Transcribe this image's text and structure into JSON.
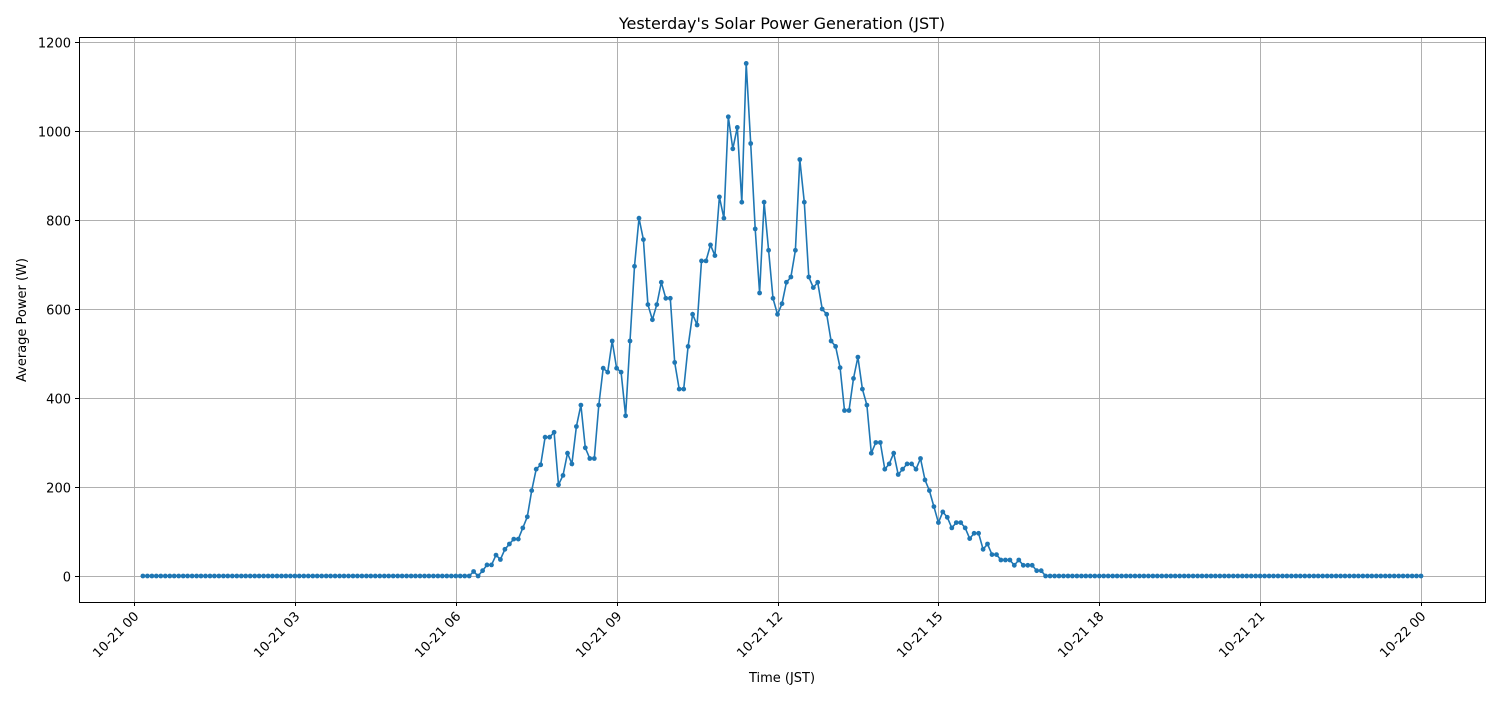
{
  "chart_data": {
    "type": "line",
    "title": "Yesterday's Solar Power Generation (JST)",
    "xlabel": "Time (JST)",
    "ylabel": "Average Power (W)",
    "xlim": [
      "10-20 22:58",
      "10-22 01:11"
    ],
    "ylim": [
      -58,
      1211
    ],
    "x_ticks": [
      "10-21 00",
      "10-21 03",
      "10-21 06",
      "10-21 09",
      "10-21 12",
      "10-21 15",
      "10-21 18",
      "10-21 21",
      "10-22 00"
    ],
    "y_ticks": [
      0,
      200,
      400,
      600,
      800,
      1000,
      1200
    ],
    "grid": true,
    "marker": "circle",
    "colors": {
      "line": "#1f77b4",
      "grid": "#b0b0b0"
    },
    "x": [
      "10-21 00:10",
      "10-21 00:15",
      "10-21 00:20",
      "10-21 00:25",
      "10-21 00:30",
      "10-21 00:35",
      "10-21 00:40",
      "10-21 00:45",
      "10-21 00:50",
      "10-21 00:55",
      "10-21 01:00",
      "10-21 01:05",
      "10-21 01:10",
      "10-21 01:15",
      "10-21 01:20",
      "10-21 01:25",
      "10-21 01:30",
      "10-21 01:35",
      "10-21 01:40",
      "10-21 01:45",
      "10-21 01:50",
      "10-21 01:55",
      "10-21 02:00",
      "10-21 02:05",
      "10-21 02:10",
      "10-21 02:15",
      "10-21 02:20",
      "10-21 02:25",
      "10-21 02:30",
      "10-21 02:35",
      "10-21 02:40",
      "10-21 02:45",
      "10-21 02:50",
      "10-21 02:55",
      "10-21 03:00",
      "10-21 03:05",
      "10-21 03:10",
      "10-21 03:15",
      "10-21 03:20",
      "10-21 03:25",
      "10-21 03:30",
      "10-21 03:35",
      "10-21 03:40",
      "10-21 03:45",
      "10-21 03:50",
      "10-21 03:55",
      "10-21 04:00",
      "10-21 04:05",
      "10-21 04:10",
      "10-21 04:15",
      "10-21 04:20",
      "10-21 04:25",
      "10-21 04:30",
      "10-21 04:35",
      "10-21 04:40",
      "10-21 04:45",
      "10-21 04:50",
      "10-21 04:55",
      "10-21 05:00",
      "10-21 05:05",
      "10-21 05:10",
      "10-21 05:15",
      "10-21 05:20",
      "10-21 05:25",
      "10-21 05:30",
      "10-21 05:35",
      "10-21 05:40",
      "10-21 05:45",
      "10-21 05:50",
      "10-21 05:55",
      "10-21 06:00",
      "10-21 06:05",
      "10-21 06:10",
      "10-21 06:15",
      "10-21 06:20",
      "10-21 06:25",
      "10-21 06:30",
      "10-21 06:35",
      "10-21 06:40",
      "10-21 06:45",
      "10-21 06:50",
      "10-21 06:55",
      "10-21 07:00",
      "10-21 07:05",
      "10-21 07:10",
      "10-21 07:15",
      "10-21 07:20",
      "10-21 07:25",
      "10-21 07:30",
      "10-21 07:35",
      "10-21 07:40",
      "10-21 07:45",
      "10-21 07:50",
      "10-21 07:55",
      "10-21 08:00",
      "10-21 08:05",
      "10-21 08:10",
      "10-21 08:15",
      "10-21 08:20",
      "10-21 08:25",
      "10-21 08:30",
      "10-21 08:35",
      "10-21 08:40",
      "10-21 08:45",
      "10-21 08:50",
      "10-21 08:55",
      "10-21 09:00",
      "10-21 09:05",
      "10-21 09:10",
      "10-21 09:15",
      "10-21 09:20",
      "10-21 09:25",
      "10-21 09:30",
      "10-21 09:35",
      "10-21 09:40",
      "10-21 09:45",
      "10-21 09:50",
      "10-21 09:55",
      "10-21 10:00",
      "10-21 10:05",
      "10-21 10:10",
      "10-21 10:15",
      "10-21 10:20",
      "10-21 10:25",
      "10-21 10:30",
      "10-21 10:35",
      "10-21 10:40",
      "10-21 10:45",
      "10-21 10:50",
      "10-21 10:55",
      "10-21 11:00",
      "10-21 11:05",
      "10-21 11:10",
      "10-21 11:15",
      "10-21 11:20",
      "10-21 11:25",
      "10-21 11:30",
      "10-21 11:35",
      "10-21 11:40",
      "10-21 11:45",
      "10-21 11:50",
      "10-21 11:55",
      "10-21 12:00",
      "10-21 12:05",
      "10-21 12:10",
      "10-21 12:15",
      "10-21 12:20",
      "10-21 12:25",
      "10-21 12:30",
      "10-21 12:35",
      "10-21 12:40",
      "10-21 12:45",
      "10-21 12:50",
      "10-21 12:55",
      "10-21 13:00",
      "10-21 13:05",
      "10-21 13:10",
      "10-21 13:15",
      "10-21 13:20",
      "10-21 13:25",
      "10-21 13:30",
      "10-21 13:35",
      "10-21 13:40",
      "10-21 13:45",
      "10-21 13:50",
      "10-21 13:55",
      "10-21 14:00",
      "10-21 14:05",
      "10-21 14:10",
      "10-21 14:15",
      "10-21 14:20",
      "10-21 14:25",
      "10-21 14:30",
      "10-21 14:35",
      "10-21 14:40",
      "10-21 14:45",
      "10-21 14:50",
      "10-21 14:55",
      "10-21 15:00",
      "10-21 15:05",
      "10-21 15:10",
      "10-21 15:15",
      "10-21 15:20",
      "10-21 15:25",
      "10-21 15:30",
      "10-21 15:35",
      "10-21 15:40",
      "10-21 15:45",
      "10-21 15:50",
      "10-21 15:55",
      "10-21 16:00",
      "10-21 16:05",
      "10-21 16:10",
      "10-21 16:15",
      "10-21 16:20",
      "10-21 16:25",
      "10-21 16:30",
      "10-21 16:35",
      "10-21 16:40",
      "10-21 16:45",
      "10-21 16:50",
      "10-21 16:55",
      "10-21 17:00",
      "10-21 17:05",
      "10-21 17:10",
      "10-21 17:15",
      "10-21 17:20",
      "10-21 17:25",
      "10-21 17:30",
      "10-21 17:35",
      "10-21 17:40",
      "10-21 17:45",
      "10-21 17:50",
      "10-21 17:55",
      "10-21 18:00",
      "10-21 18:05",
      "10-21 18:10",
      "10-21 18:15",
      "10-21 18:20",
      "10-21 18:25",
      "10-21 18:30",
      "10-21 18:35",
      "10-21 18:40",
      "10-21 18:45",
      "10-21 18:50",
      "10-21 18:55",
      "10-21 19:00",
      "10-21 19:05",
      "10-21 19:10",
      "10-21 19:15",
      "10-21 19:20",
      "10-21 19:25",
      "10-21 19:30",
      "10-21 19:35",
      "10-21 19:40",
      "10-21 19:45",
      "10-21 19:50",
      "10-21 19:55",
      "10-21 20:00",
      "10-21 20:05",
      "10-21 20:10",
      "10-21 20:15",
      "10-21 20:20",
      "10-21 20:25",
      "10-21 20:30",
      "10-21 20:35",
      "10-21 20:40",
      "10-21 20:45",
      "10-21 20:50",
      "10-21 20:55",
      "10-21 21:00",
      "10-21 21:05",
      "10-21 21:10",
      "10-21 21:15",
      "10-21 21:20",
      "10-21 21:25",
      "10-21 21:30",
      "10-21 21:35",
      "10-21 21:40",
      "10-21 21:45",
      "10-21 21:50",
      "10-21 21:55",
      "10-21 22:00",
      "10-21 22:05",
      "10-21 22:10",
      "10-21 22:15",
      "10-21 22:20",
      "10-21 22:25",
      "10-21 22:30",
      "10-21 22:35",
      "10-21 22:40",
      "10-21 22:45",
      "10-21 22:50",
      "10-21 22:55",
      "10-21 23:00",
      "10-21 23:05",
      "10-21 23:10",
      "10-21 23:15",
      "10-21 23:20",
      "10-21 23:25",
      "10-21 23:30",
      "10-21 23:35",
      "10-21 23:40",
      "10-21 23:45",
      "10-21 23:50",
      "10-21 23:55",
      "10-22 00:00"
    ],
    "values": [
      0,
      0,
      0,
      0,
      0,
      0,
      0,
      0,
      0,
      0,
      0,
      0,
      0,
      0,
      0,
      0,
      0,
      0,
      0,
      0,
      0,
      0,
      0,
      0,
      0,
      0,
      0,
      0,
      0,
      0,
      0,
      0,
      0,
      0,
      0,
      0,
      0,
      0,
      0,
      0,
      0,
      0,
      0,
      0,
      0,
      0,
      0,
      0,
      0,
      0,
      0,
      0,
      0,
      0,
      0,
      0,
      0,
      0,
      0,
      0,
      0,
      0,
      0,
      0,
      0,
      0,
      0,
      0,
      0,
      0,
      0,
      0,
      0,
      0,
      10,
      0,
      12,
      25,
      25,
      47,
      37,
      60,
      72,
      83,
      83,
      108,
      133,
      192,
      240,
      250,
      312,
      312,
      323,
      205,
      226,
      276,
      252,
      336,
      384,
      288,
      264,
      264,
      384,
      467,
      458,
      528,
      467,
      458,
      360,
      528,
      696,
      804,
      756,
      610,
      576,
      610,
      660,
      624,
      624,
      480,
      420,
      420,
      516,
      588,
      564,
      708,
      708,
      744,
      720,
      852,
      804,
      1032,
      960,
      1008,
      840,
      1152,
      972,
      780,
      636,
      840,
      732,
      624,
      588,
      612,
      660,
      672,
      732,
      936,
      840,
      672,
      648,
      660,
      600,
      588,
      528,
      516,
      468,
      372,
      372,
      444,
      492,
      420,
      384,
      276,
      300,
      300,
      240,
      252,
      276,
      228,
      240,
      252,
      252,
      240,
      264,
      216,
      192,
      156,
      120,
      144,
      132,
      108,
      120,
      120,
      108,
      84,
      96,
      96,
      60,
      72,
      48,
      48,
      36,
      36,
      36,
      24,
      36,
      24,
      24,
      24,
      12,
      12,
      0,
      0,
      0,
      0,
      0,
      0,
      0,
      0,
      0,
      0,
      0,
      0,
      0,
      0,
      0,
      0,
      0,
      0,
      0,
      0,
      0,
      0,
      0,
      0,
      0,
      0,
      0,
      0,
      0,
      0,
      0,
      0,
      0,
      0,
      0,
      0,
      0,
      0,
      0,
      0,
      0,
      0,
      0,
      0,
      0,
      0,
      0,
      0,
      0,
      0,
      0,
      0,
      0,
      0,
      0,
      0,
      0,
      0,
      0,
      0,
      0,
      0,
      0,
      0,
      0,
      0,
      0,
      0,
      0,
      0,
      0,
      0,
      0,
      0,
      0,
      0,
      0,
      0,
      0,
      0,
      0,
      0,
      0,
      0,
      0
    ]
  }
}
